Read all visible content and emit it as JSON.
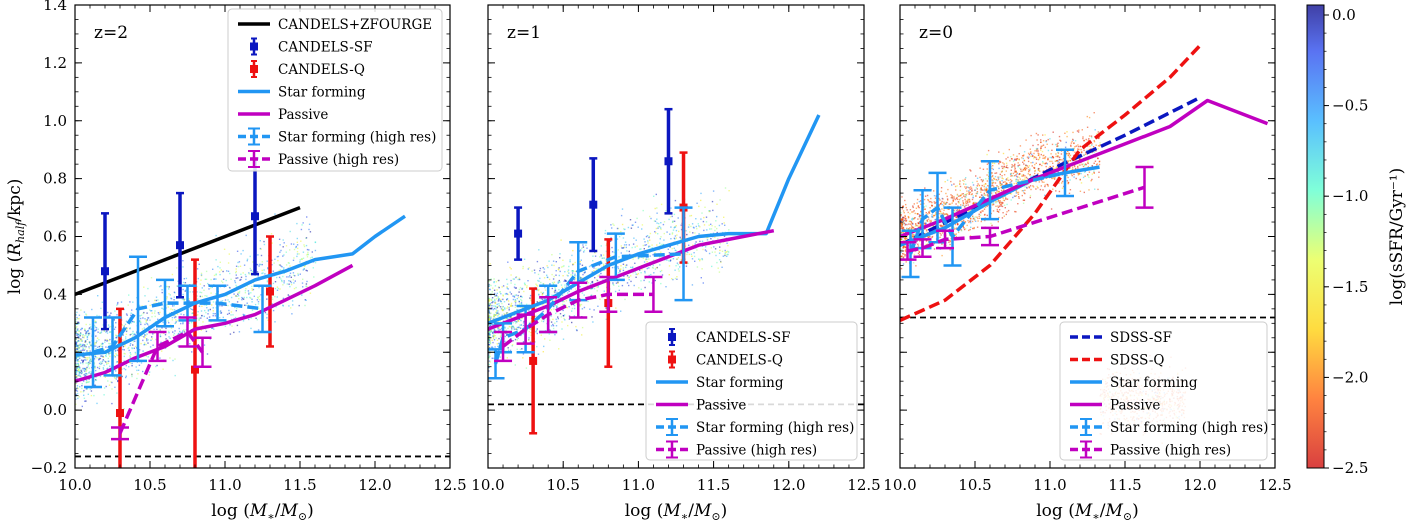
{
  "colors": {
    "blue_light": "#2196f3",
    "magenta": "#c000c0",
    "navy": "#0b17c0",
    "red": "#ee1111",
    "black": "#000000"
  },
  "chart_data": [
    {
      "type": "line",
      "panel_label": "z=2",
      "xlabel": "log (M*/M⊙)",
      "ylabel": "log (R_half/kpc)",
      "xlim": [
        10.0,
        12.5
      ],
      "ylim": [
        -0.2,
        1.4
      ],
      "xticks": [
        "10.0",
        "10.5",
        "11.0",
        "11.5",
        "12.0",
        "12.5"
      ],
      "yticks": [
        "−0.2",
        "0.0",
        "0.2",
        "0.4",
        "0.6",
        "0.8",
        "1.0",
        "1.2",
        "1.4"
      ],
      "legend_position": "top-right",
      "series": [
        {
          "name": "CANDELS+ZFOURGE",
          "kind": "line",
          "color": "#000000",
          "x": [
            10.0,
            11.5
          ],
          "y": [
            0.4,
            0.7
          ]
        },
        {
          "name": "CANDELS-SF",
          "kind": "errorbar",
          "color": "#0b17c0",
          "x": [
            10.2,
            10.7,
            11.2
          ],
          "y": [
            0.48,
            0.57,
            0.67
          ],
          "yerr": [
            0.2,
            0.18,
            0.2
          ]
        },
        {
          "name": "CANDELS-Q",
          "kind": "errorbar",
          "color": "#ee1111",
          "x": [
            10.3,
            10.8,
            11.3
          ],
          "y": [
            -0.01,
            0.14,
            0.41
          ],
          "yerr": [
            0.36,
            0.38,
            0.19
          ]
        },
        {
          "name": "Star forming",
          "kind": "line",
          "color": "#2196f3",
          "x": [
            10.0,
            10.2,
            10.4,
            10.6,
            10.8,
            11.0,
            11.2,
            11.4,
            11.6,
            11.85,
            12.0,
            12.2
          ],
          "y": [
            0.19,
            0.2,
            0.25,
            0.32,
            0.37,
            0.4,
            0.45,
            0.48,
            0.52,
            0.54,
            0.6,
            0.67
          ]
        },
        {
          "name": "Passive",
          "kind": "line",
          "color": "#c000c0",
          "x": [
            10.0,
            10.2,
            10.4,
            10.6,
            10.8,
            11.0,
            11.2,
            11.4,
            11.6,
            11.85
          ],
          "y": [
            0.1,
            0.13,
            0.18,
            0.22,
            0.28,
            0.3,
            0.33,
            0.38,
            0.43,
            0.5
          ]
        },
        {
          "name": "Star forming (high res)",
          "kind": "dashed-errorbar",
          "color": "#2196f3",
          "x": [
            10.12,
            10.25,
            10.42,
            10.6,
            10.75,
            10.95,
            11.25
          ],
          "y": [
            0.2,
            0.22,
            0.35,
            0.37,
            0.37,
            0.37,
            0.35
          ],
          "yerr": [
            0.12,
            0.1,
            0.18,
            0.08,
            0.06,
            0.06,
            0.08
          ]
        },
        {
          "name": "Passive (high res)",
          "kind": "dashed-errorbar",
          "color": "#c000c0",
          "x": [
            10.3,
            10.55,
            10.75,
            10.85
          ],
          "y": [
            -0.08,
            0.22,
            0.27,
            0.2
          ],
          "yerr": [
            0.02,
            0.05,
            0.05,
            0.05
          ]
        }
      ],
      "resolution_limit": -0.16
    },
    {
      "type": "line",
      "panel_label": "z=1",
      "xlabel": "log (M*/M⊙)",
      "xlim": [
        10.0,
        12.5
      ],
      "ylim": [
        -0.2,
        1.4
      ],
      "xticks": [
        "10.0",
        "10.5",
        "11.0",
        "11.5",
        "12.0",
        "12.5"
      ],
      "legend_position": "bottom-right",
      "series": [
        {
          "name": "CANDELS-SF",
          "kind": "errorbar",
          "color": "#0b17c0",
          "x": [
            10.2,
            10.7,
            11.2
          ],
          "y": [
            0.61,
            0.71,
            0.86
          ],
          "yerr": [
            0.09,
            0.16,
            0.18
          ]
        },
        {
          "name": "CANDELS-Q",
          "kind": "errorbar",
          "color": "#ee1111",
          "x": [
            10.3,
            10.8,
            11.3
          ],
          "y": [
            0.17,
            0.37,
            0.7
          ],
          "yerr": [
            0.25,
            0.22,
            0.19
          ]
        },
        {
          "name": "Star forming",
          "kind": "line",
          "color": "#2196f3",
          "x": [
            10.0,
            10.2,
            10.4,
            10.6,
            10.8,
            11.0,
            11.2,
            11.4,
            11.6,
            11.85,
            12.0,
            12.2
          ],
          "y": [
            0.3,
            0.34,
            0.38,
            0.44,
            0.5,
            0.54,
            0.57,
            0.6,
            0.61,
            0.61,
            0.8,
            1.02
          ]
        },
        {
          "name": "Passive",
          "kind": "line",
          "color": "#c000c0",
          "x": [
            10.0,
            10.2,
            10.4,
            10.6,
            10.8,
            11.0,
            11.2,
            11.4,
            11.6,
            11.9
          ],
          "y": [
            0.28,
            0.32,
            0.36,
            0.41,
            0.45,
            0.49,
            0.53,
            0.57,
            0.59,
            0.62
          ]
        },
        {
          "name": "Star forming (high res)",
          "kind": "dashed-errorbar",
          "color": "#2196f3",
          "x": [
            10.05,
            10.1,
            10.25,
            10.4,
            10.6,
            10.85,
            11.3
          ],
          "y": [
            0.16,
            0.25,
            0.28,
            0.35,
            0.48,
            0.53,
            0.54
          ],
          "yerr": [
            0.05,
            0.05,
            0.08,
            0.08,
            0.1,
            0.08,
            0.16
          ]
        },
        {
          "name": "Passive (high res)",
          "kind": "dashed-errorbar",
          "color": "#c000c0",
          "x": [
            10.1,
            10.25,
            10.4,
            10.6,
            10.8,
            11.1
          ],
          "y": [
            0.22,
            0.28,
            0.33,
            0.38,
            0.4,
            0.4
          ],
          "yerr": [
            0.05,
            0.05,
            0.06,
            0.06,
            0.06,
            0.06
          ]
        }
      ],
      "resolution_limit": 0.02
    },
    {
      "type": "line",
      "panel_label": "z=0",
      "xlabel": "log (M*/M⊙)",
      "xlim": [
        10.0,
        12.5
      ],
      "ylim": [
        -0.2,
        1.4
      ],
      "xticks": [
        "10.0",
        "10.5",
        "11.0",
        "11.5",
        "12.0",
        "12.5"
      ],
      "legend_position": "bottom-right",
      "series": [
        {
          "name": "SDSS-SF",
          "kind": "dashed-line",
          "color": "#0b17c0",
          "x": [
            10.0,
            10.5,
            11.0,
            11.5,
            12.0
          ],
          "y": [
            0.57,
            0.7,
            0.83,
            0.95,
            1.08
          ]
        },
        {
          "name": "SDSS-Q",
          "kind": "dashed-line",
          "color": "#ee1111",
          "x": [
            10.0,
            10.3,
            10.6,
            10.9,
            11.2,
            11.5,
            11.8,
            12.0
          ],
          "y": [
            0.31,
            0.38,
            0.5,
            0.68,
            0.9,
            1.02,
            1.15,
            1.26
          ]
        },
        {
          "name": "Star forming",
          "kind": "line",
          "color": "#2196f3",
          "x": [
            10.0,
            10.3,
            10.6,
            10.9,
            11.1,
            11.33
          ],
          "y": [
            0.57,
            0.63,
            0.72,
            0.8,
            0.82,
            0.84
          ]
        },
        {
          "name": "Passive",
          "kind": "line",
          "color": "#c000c0",
          "x": [
            10.0,
            10.3,
            10.6,
            10.9,
            11.2,
            11.5,
            11.8,
            12.05,
            12.45
          ],
          "y": [
            0.6,
            0.66,
            0.73,
            0.8,
            0.86,
            0.92,
            0.98,
            1.07,
            0.99
          ]
        },
        {
          "name": "Star forming (high res)",
          "kind": "dashed-errorbar",
          "color": "#2196f3",
          "x": [
            10.07,
            10.15,
            10.25,
            10.35,
            10.6,
            11.1
          ],
          "y": [
            0.54,
            0.66,
            0.7,
            0.6,
            0.76,
            0.82
          ],
          "yerr": [
            0.08,
            0.1,
            0.12,
            0.1,
            0.1,
            0.08
          ]
        },
        {
          "name": "Passive (high res)",
          "kind": "dashed-errorbar",
          "color": "#c000c0",
          "x": [
            10.05,
            10.15,
            10.3,
            10.6,
            11.63
          ],
          "y": [
            0.55,
            0.56,
            0.59,
            0.6,
            0.77
          ],
          "yerr": [
            0.03,
            0.03,
            0.03,
            0.03,
            0.07
          ]
        }
      ],
      "resolution_limit": 0.32
    }
  ],
  "colorbar": {
    "label": "log(sSFR/Gyr⁻¹)",
    "min": -2.5,
    "max": 0.0,
    "ticks": [
      "0.0",
      "−0.5",
      "−1.0",
      "−1.5",
      "−2.0",
      "−2.5"
    ]
  }
}
